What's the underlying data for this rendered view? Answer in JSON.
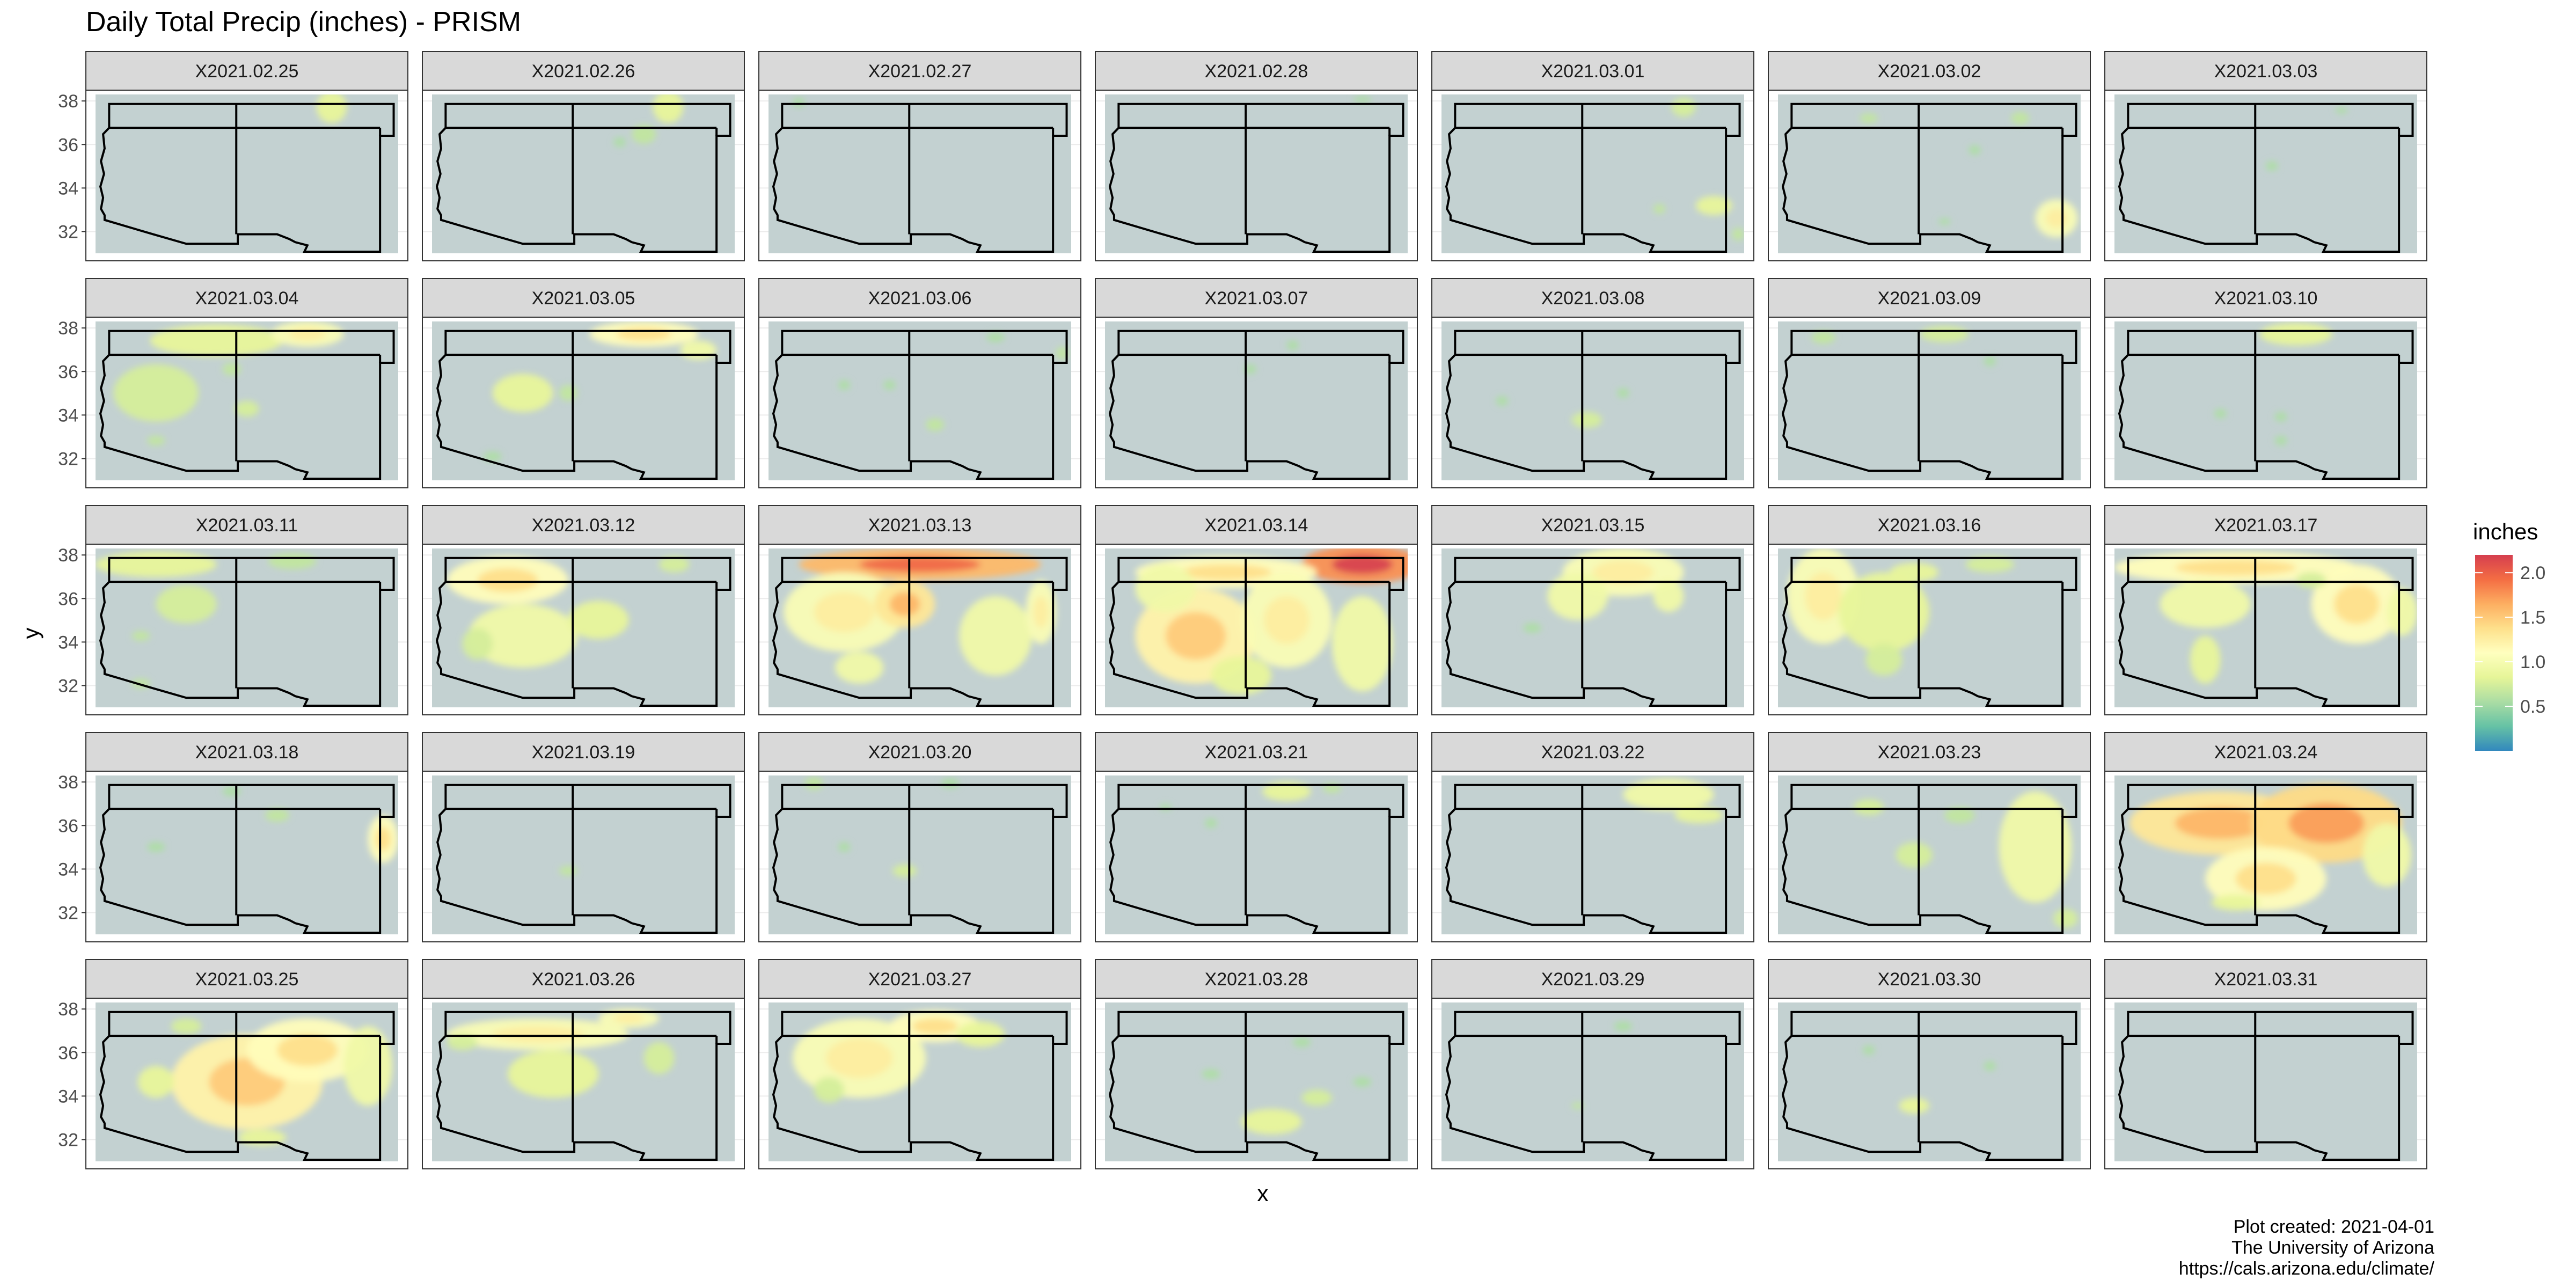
{
  "chart_data": {
    "type": "heatmap",
    "title": "Daily Total Precip (inches) - PRISM",
    "xlabel": "x",
    "ylabel": "y",
    "ylim": [
      31,
      38.3
    ],
    "y_ticks": [
      32,
      34,
      36,
      38
    ],
    "grid": true,
    "facet_layout": {
      "ncol": 7,
      "nrow": 5
    },
    "legend": {
      "title": "inches",
      "placement": "right",
      "range": [
        0,
        2.2
      ],
      "ticks": [
        0.5,
        1.0,
        1.5,
        2.0
      ],
      "tick_labels": [
        "0.5",
        "1.0",
        "1.5",
        "2.0"
      ],
      "palette": [
        "#3288bd",
        "#66c2a5",
        "#abdda4",
        "#e6f598",
        "#ffffbf",
        "#fee08b",
        "#fdae61",
        "#f46d43",
        "#d53e4f"
      ]
    },
    "colors": {
      "no_precip": "#c3d1d1",
      "strip_fill": "#d9d9d9",
      "boundary": "#000000"
    },
    "panels": [
      {
        "label": "X2021.02.25",
        "blobs": [
          [
            0.78,
            0.08,
            0.05,
            0.1,
            0.45
          ]
        ]
      },
      {
        "label": "X2021.02.26",
        "blobs": [
          [
            0.78,
            0.08,
            0.05,
            0.1,
            0.45
          ],
          [
            0.7,
            0.25,
            0.04,
            0.06,
            0.35
          ],
          [
            0.62,
            0.3,
            0.02,
            0.03,
            0.3
          ]
        ]
      },
      {
        "label": "X2021.02.27",
        "blobs": [
          [
            0.1,
            0.05,
            0.02,
            0.03,
            0.3
          ]
        ]
      },
      {
        "label": "X2021.02.28",
        "blobs": [
          [
            0.85,
            0.03,
            0.03,
            0.02,
            0.3
          ]
        ]
      },
      {
        "label": "X2021.03.01",
        "blobs": [
          [
            0.8,
            0.08,
            0.04,
            0.06,
            0.4
          ],
          [
            0.9,
            0.7,
            0.06,
            0.06,
            0.45
          ],
          [
            0.72,
            0.72,
            0.02,
            0.03,
            0.35
          ],
          [
            0.98,
            0.88,
            0.02,
            0.04,
            0.35
          ]
        ]
      },
      {
        "label": "X2021.03.02",
        "blobs": [
          [
            0.92,
            0.78,
            0.07,
            0.12,
            0.55
          ],
          [
            0.65,
            0.35,
            0.02,
            0.03,
            0.3
          ],
          [
            0.8,
            0.15,
            0.03,
            0.04,
            0.35
          ],
          [
            0.55,
            0.8,
            0.02,
            0.02,
            0.3
          ],
          [
            0.3,
            0.15,
            0.03,
            0.03,
            0.35
          ]
        ]
      },
      {
        "label": "X2021.03.03",
        "blobs": [
          [
            0.52,
            0.45,
            0.02,
            0.03,
            0.3
          ],
          [
            0.75,
            0.1,
            0.02,
            0.02,
            0.3
          ]
        ]
      },
      {
        "label": "X2021.03.04",
        "blobs": [
          [
            0.2,
            0.45,
            0.14,
            0.18,
            0.4
          ],
          [
            0.4,
            0.12,
            0.22,
            0.1,
            0.45
          ],
          [
            0.7,
            0.08,
            0.12,
            0.08,
            0.55
          ],
          [
            0.5,
            0.55,
            0.04,
            0.05,
            0.4
          ],
          [
            0.45,
            0.3,
            0.03,
            0.04,
            0.35
          ],
          [
            0.2,
            0.75,
            0.03,
            0.03,
            0.35
          ]
        ]
      },
      {
        "label": "X2021.03.05",
        "blobs": [
          [
            0.7,
            0.08,
            0.18,
            0.08,
            0.6
          ],
          [
            0.3,
            0.45,
            0.1,
            0.12,
            0.45
          ],
          [
            0.45,
            0.45,
            0.03,
            0.05,
            0.35
          ],
          [
            0.88,
            0.18,
            0.06,
            0.06,
            0.5
          ],
          [
            0.2,
            0.85,
            0.03,
            0.03,
            0.3
          ]
        ]
      },
      {
        "label": "X2021.03.06",
        "blobs": [
          [
            0.75,
            0.1,
            0.03,
            0.03,
            0.3
          ],
          [
            0.55,
            0.65,
            0.03,
            0.04,
            0.35
          ],
          [
            0.4,
            0.4,
            0.02,
            0.03,
            0.3
          ],
          [
            0.97,
            0.2,
            0.02,
            0.04,
            0.35
          ],
          [
            0.25,
            0.4,
            0.02,
            0.03,
            0.3
          ]
        ]
      },
      {
        "label": "X2021.03.07",
        "blobs": [
          [
            0.62,
            0.15,
            0.02,
            0.03,
            0.3
          ],
          [
            0.48,
            0.3,
            0.02,
            0.03,
            0.3
          ]
        ]
      },
      {
        "label": "X2021.03.08",
        "blobs": [
          [
            0.48,
            0.62,
            0.05,
            0.05,
            0.4
          ],
          [
            0.6,
            0.45,
            0.02,
            0.03,
            0.3
          ],
          [
            0.2,
            0.5,
            0.02,
            0.03,
            0.3
          ]
        ]
      },
      {
        "label": "X2021.03.09",
        "blobs": [
          [
            0.55,
            0.08,
            0.08,
            0.05,
            0.4
          ],
          [
            0.15,
            0.1,
            0.04,
            0.04,
            0.35
          ],
          [
            0.7,
            0.25,
            0.02,
            0.03,
            0.3
          ]
        ]
      },
      {
        "label": "X2021.03.10",
        "blobs": [
          [
            0.6,
            0.08,
            0.12,
            0.07,
            0.45
          ],
          [
            0.55,
            0.6,
            0.02,
            0.03,
            0.3
          ],
          [
            0.35,
            0.58,
            0.02,
            0.03,
            0.3
          ],
          [
            0.55,
            0.75,
            0.02,
            0.03,
            0.3
          ]
        ]
      },
      {
        "label": "X2021.03.11",
        "blobs": [
          [
            0.2,
            0.1,
            0.2,
            0.08,
            0.45
          ],
          [
            0.3,
            0.35,
            0.1,
            0.12,
            0.4
          ],
          [
            0.15,
            0.55,
            0.03,
            0.03,
            0.35
          ],
          [
            0.65,
            0.08,
            0.08,
            0.05,
            0.35
          ],
          [
            0.15,
            0.85,
            0.03,
            0.03,
            0.35
          ]
        ]
      },
      {
        "label": "X2021.03.12",
        "blobs": [
          [
            0.25,
            0.2,
            0.2,
            0.15,
            0.6
          ],
          [
            0.3,
            0.55,
            0.18,
            0.2,
            0.5
          ],
          [
            0.55,
            0.45,
            0.1,
            0.12,
            0.45
          ],
          [
            0.15,
            0.6,
            0.05,
            0.1,
            0.4
          ],
          [
            0.8,
            0.1,
            0.05,
            0.05,
            0.4
          ]
        ]
      },
      {
        "label": "X2021.03.13",
        "blobs": [
          [
            0.5,
            0.1,
            0.4,
            0.1,
            0.85
          ],
          [
            0.25,
            0.4,
            0.2,
            0.25,
            0.55
          ],
          [
            0.45,
            0.35,
            0.1,
            0.15,
            0.7
          ],
          [
            0.75,
            0.55,
            0.12,
            0.25,
            0.5
          ],
          [
            0.9,
            0.4,
            0.05,
            0.2,
            0.55
          ],
          [
            0.3,
            0.75,
            0.08,
            0.1,
            0.5
          ]
        ]
      },
      {
        "label": "X2021.03.14",
        "blobs": [
          [
            0.85,
            0.1,
            0.2,
            0.12,
            0.95
          ],
          [
            0.4,
            0.15,
            0.3,
            0.1,
            0.6
          ],
          [
            0.3,
            0.55,
            0.2,
            0.3,
            0.65
          ],
          [
            0.6,
            0.45,
            0.15,
            0.3,
            0.55
          ],
          [
            0.85,
            0.6,
            0.1,
            0.3,
            0.5
          ],
          [
            0.2,
            0.25,
            0.1,
            0.15,
            0.5
          ],
          [
            0.45,
            0.8,
            0.1,
            0.12,
            0.45
          ]
        ]
      },
      {
        "label": "X2021.03.15",
        "blobs": [
          [
            0.6,
            0.15,
            0.2,
            0.15,
            0.55
          ],
          [
            0.45,
            0.3,
            0.1,
            0.15,
            0.5
          ],
          [
            0.75,
            0.3,
            0.05,
            0.1,
            0.5
          ],
          [
            0.3,
            0.5,
            0.03,
            0.03,
            0.3
          ]
        ]
      },
      {
        "label": "X2021.03.16",
        "blobs": [
          [
            0.15,
            0.3,
            0.12,
            0.3,
            0.55
          ],
          [
            0.35,
            0.4,
            0.15,
            0.25,
            0.45
          ],
          [
            0.35,
            0.7,
            0.06,
            0.1,
            0.4
          ],
          [
            0.45,
            0.15,
            0.08,
            0.06,
            0.45
          ],
          [
            0.7,
            0.1,
            0.08,
            0.05,
            0.4
          ]
        ]
      },
      {
        "label": "X2021.03.17",
        "blobs": [
          [
            0.4,
            0.12,
            0.4,
            0.1,
            0.6
          ],
          [
            0.3,
            0.35,
            0.15,
            0.15,
            0.5
          ],
          [
            0.3,
            0.7,
            0.05,
            0.15,
            0.45
          ],
          [
            0.8,
            0.35,
            0.15,
            0.25,
            0.6
          ],
          [
            0.95,
            0.4,
            0.05,
            0.15,
            0.5
          ],
          [
            0.65,
            0.2,
            0.05,
            0.05,
            0.4
          ]
        ]
      },
      {
        "label": "X2021.03.18",
        "blobs": [
          [
            0.95,
            0.4,
            0.05,
            0.15,
            0.6
          ],
          [
            0.6,
            0.25,
            0.04,
            0.04,
            0.35
          ],
          [
            0.2,
            0.45,
            0.03,
            0.03,
            0.3
          ],
          [
            0.45,
            0.1,
            0.03,
            0.03,
            0.3
          ]
        ]
      },
      {
        "label": "X2021.03.19",
        "blobs": [
          [
            0.45,
            0.6,
            0.03,
            0.03,
            0.35
          ]
        ]
      },
      {
        "label": "X2021.03.20",
        "blobs": [
          [
            0.45,
            0.6,
            0.04,
            0.04,
            0.4
          ],
          [
            0.15,
            0.05,
            0.03,
            0.04,
            0.35
          ],
          [
            0.6,
            0.05,
            0.03,
            0.03,
            0.3
          ],
          [
            0.25,
            0.45,
            0.02,
            0.03,
            0.3
          ]
        ]
      },
      {
        "label": "X2021.03.21",
        "blobs": [
          [
            0.6,
            0.1,
            0.08,
            0.06,
            0.45
          ],
          [
            0.75,
            0.08,
            0.03,
            0.03,
            0.35
          ],
          [
            0.35,
            0.3,
            0.02,
            0.03,
            0.3
          ],
          [
            0.2,
            0.2,
            0.02,
            0.02,
            0.3
          ]
        ]
      },
      {
        "label": "X2021.03.22",
        "blobs": [
          [
            0.75,
            0.12,
            0.15,
            0.1,
            0.5
          ],
          [
            0.85,
            0.25,
            0.08,
            0.05,
            0.45
          ]
        ]
      },
      {
        "label": "X2021.03.23",
        "blobs": [
          [
            0.85,
            0.45,
            0.12,
            0.35,
            0.5
          ],
          [
            0.45,
            0.5,
            0.06,
            0.08,
            0.4
          ],
          [
            0.3,
            0.2,
            0.05,
            0.05,
            0.4
          ],
          [
            0.6,
            0.25,
            0.05,
            0.05,
            0.35
          ],
          [
            0.95,
            0.9,
            0.04,
            0.06,
            0.4
          ]
        ]
      },
      {
        "label": "X2021.03.24",
        "blobs": [
          [
            0.35,
            0.3,
            0.3,
            0.2,
            0.7
          ],
          [
            0.7,
            0.3,
            0.25,
            0.25,
            0.75
          ],
          [
            0.5,
            0.65,
            0.2,
            0.2,
            0.6
          ],
          [
            0.9,
            0.5,
            0.08,
            0.2,
            0.5
          ],
          [
            0.4,
            0.8,
            0.08,
            0.05,
            0.45
          ]
        ]
      },
      {
        "label": "X2021.03.25",
        "blobs": [
          [
            0.5,
            0.5,
            0.25,
            0.3,
            0.65
          ],
          [
            0.7,
            0.3,
            0.2,
            0.2,
            0.6
          ],
          [
            0.9,
            0.4,
            0.08,
            0.25,
            0.5
          ],
          [
            0.2,
            0.5,
            0.06,
            0.1,
            0.45
          ],
          [
            0.3,
            0.15,
            0.05,
            0.05,
            0.4
          ],
          [
            0.55,
            0.85,
            0.08,
            0.05,
            0.45
          ]
        ]
      },
      {
        "label": "X2021.03.26",
        "blobs": [
          [
            0.35,
            0.2,
            0.3,
            0.1,
            0.55
          ],
          [
            0.4,
            0.45,
            0.15,
            0.15,
            0.45
          ],
          [
            0.65,
            0.1,
            0.1,
            0.06,
            0.55
          ],
          [
            0.1,
            0.25,
            0.05,
            0.05,
            0.4
          ],
          [
            0.75,
            0.35,
            0.05,
            0.1,
            0.4
          ]
        ]
      },
      {
        "label": "X2021.03.27",
        "blobs": [
          [
            0.3,
            0.35,
            0.22,
            0.25,
            0.55
          ],
          [
            0.55,
            0.15,
            0.15,
            0.1,
            0.6
          ],
          [
            0.7,
            0.2,
            0.08,
            0.08,
            0.45
          ],
          [
            0.2,
            0.55,
            0.05,
            0.08,
            0.4
          ]
        ]
      },
      {
        "label": "X2021.03.28",
        "blobs": [
          [
            0.55,
            0.75,
            0.1,
            0.08,
            0.45
          ],
          [
            0.7,
            0.6,
            0.05,
            0.05,
            0.4
          ],
          [
            0.35,
            0.45,
            0.03,
            0.03,
            0.3
          ],
          [
            0.65,
            0.25,
            0.03,
            0.03,
            0.3
          ],
          [
            0.85,
            0.5,
            0.03,
            0.03,
            0.3
          ]
        ]
      },
      {
        "label": "X2021.03.29",
        "blobs": [
          [
            0.45,
            0.65,
            0.02,
            0.02,
            0.35
          ],
          [
            0.6,
            0.15,
            0.03,
            0.03,
            0.3
          ]
        ]
      },
      {
        "label": "X2021.03.30",
        "blobs": [
          [
            0.45,
            0.65,
            0.05,
            0.05,
            0.45
          ],
          [
            0.3,
            0.3,
            0.02,
            0.03,
            0.3
          ],
          [
            0.7,
            0.4,
            0.02,
            0.03,
            0.3
          ]
        ]
      },
      {
        "label": "X2021.03.31",
        "blobs": []
      }
    ],
    "caption": [
      "Plot created: 2021-04-01",
      "The University of Arizona",
      "https://cals.arizona.edu/climate/"
    ]
  }
}
